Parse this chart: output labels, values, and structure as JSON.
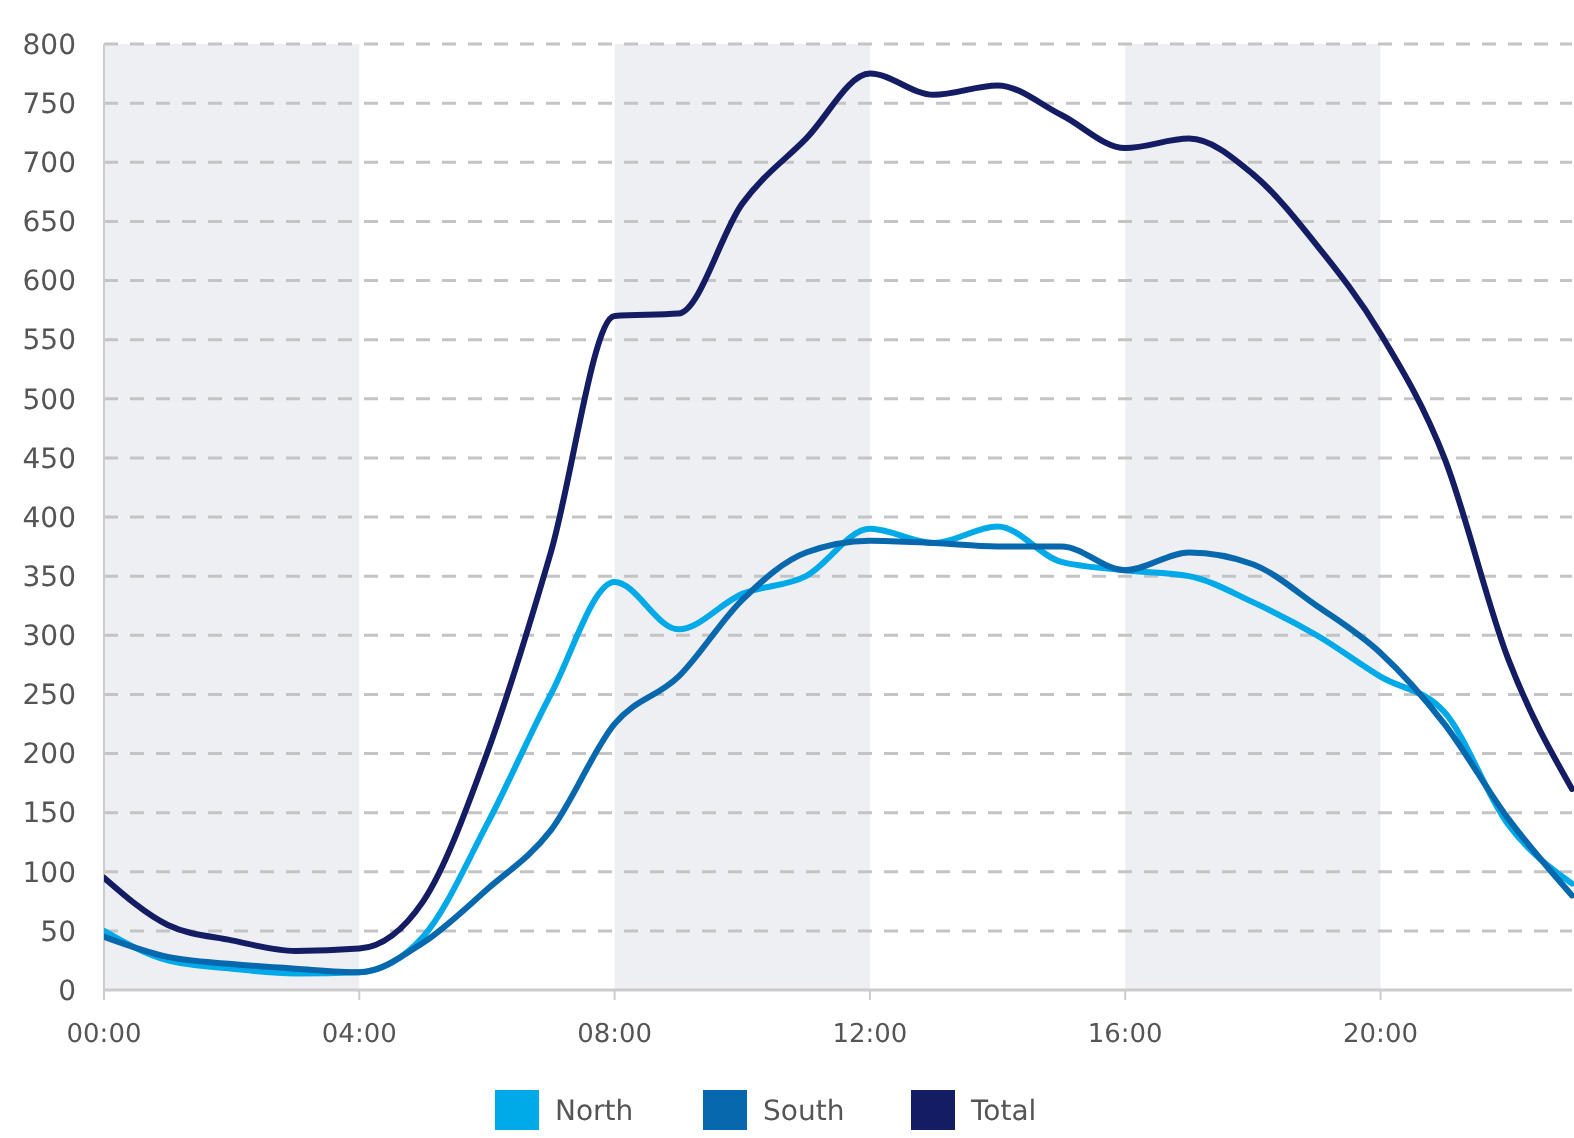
{
  "chart_data": {
    "type": "line",
    "x": [
      0,
      1,
      2,
      3,
      4,
      5,
      6,
      7,
      8,
      9,
      10,
      11,
      12,
      13,
      14,
      15,
      16,
      17,
      18,
      19,
      20,
      21,
      22,
      23
    ],
    "series": [
      {
        "name": "North",
        "color": "#00a9e8",
        "values": [
          50,
          25,
          18,
          14,
          15,
          45,
          140,
          250,
          345,
          305,
          335,
          350,
          390,
          378,
          392,
          362,
          355,
          350,
          328,
          300,
          265,
          235,
          140,
          90
        ]
      },
      {
        "name": "South",
        "color": "#0868ad",
        "values": [
          45,
          28,
          22,
          18,
          15,
          40,
          85,
          135,
          225,
          265,
          330,
          370,
          380,
          378,
          375,
          375,
          355,
          370,
          360,
          325,
          285,
          225,
          145,
          80
        ]
      },
      {
        "name": "Total",
        "color": "#141c64",
        "values": [
          95,
          55,
          42,
          33,
          35,
          75,
          200,
          370,
          570,
          572,
          665,
          720,
          775,
          757,
          765,
          740,
          712,
          720,
          690,
          630,
          555,
          450,
          280,
          170
        ]
      }
    ],
    "xlim": [
      0,
      23
    ],
    "xticks": [
      {
        "value": 0,
        "label": "00:00"
      },
      {
        "value": 4,
        "label": "04:00"
      },
      {
        "value": 8,
        "label": "08:00"
      },
      {
        "value": 12,
        "label": "12:00"
      },
      {
        "value": 16,
        "label": "16:00"
      },
      {
        "value": 20,
        "label": "20:00"
      }
    ],
    "ylim": [
      0,
      800
    ],
    "yticks": [
      0,
      50,
      100,
      150,
      200,
      250,
      300,
      350,
      400,
      450,
      500,
      550,
      600,
      650,
      700,
      750,
      800
    ],
    "bands": [
      {
        "axis": "x",
        "from": 0,
        "to": 4,
        "color": "#eeeff2"
      },
      {
        "axis": "x",
        "from": 8,
        "to": 12,
        "color": "#eeeff2"
      },
      {
        "axis": "x",
        "from": 16,
        "to": 20,
        "color": "#eeeff2"
      }
    ],
    "grid": "y",
    "legend": "bottom",
    "marker": "none",
    "line_style": "solid"
  }
}
